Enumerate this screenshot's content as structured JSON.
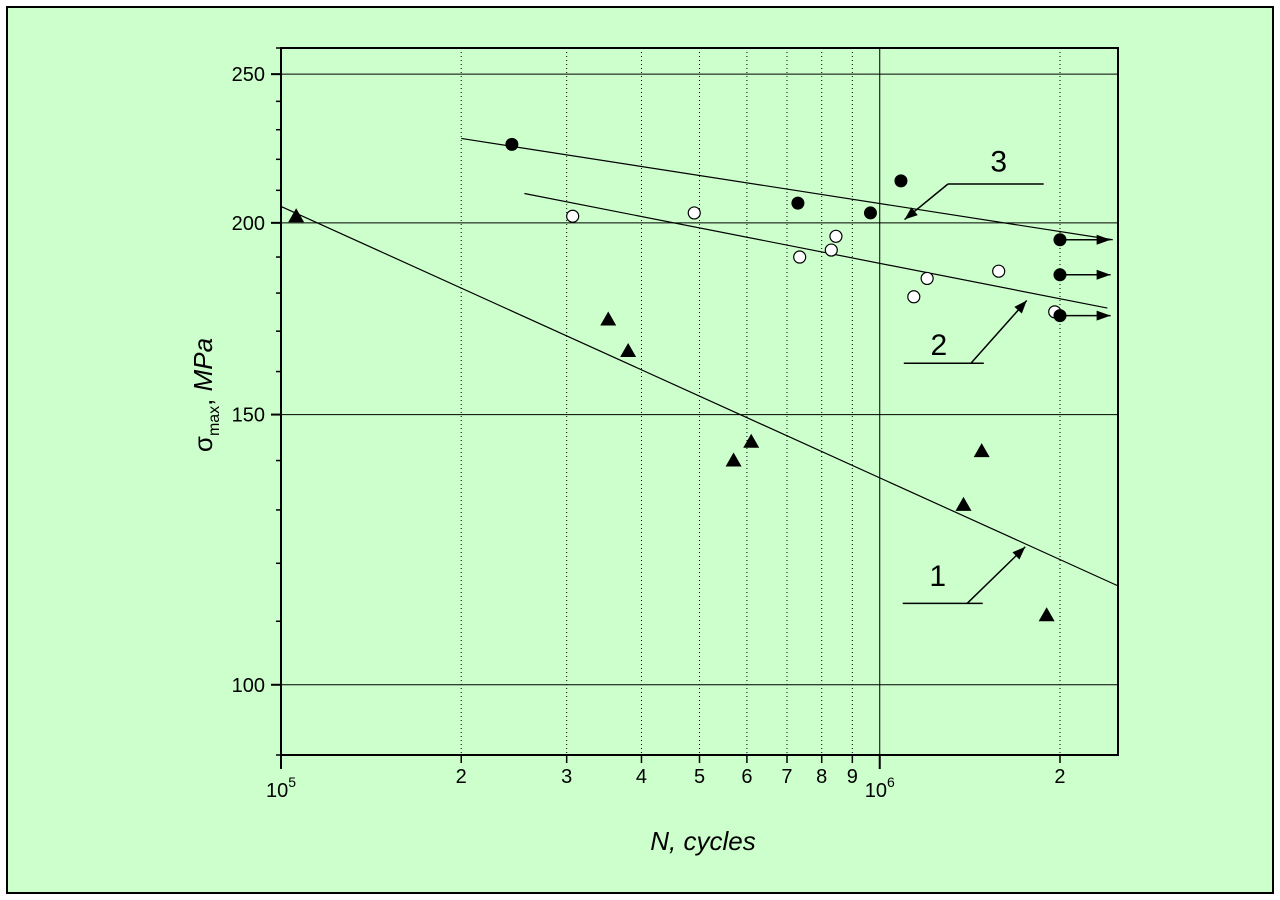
{
  "chart_data": {
    "type": "scatter",
    "title": "",
    "xlabel": "N, cycles",
    "ylabel": {
      "base": "σ",
      "sub": "max",
      "rest": ", ",
      "unit": "MPa"
    },
    "x_scale": "log",
    "y_scale": "log",
    "xlim": [
      100000,
      2500000
    ],
    "ylim": [
      90,
      260
    ],
    "x_major_ticks": [
      {
        "value": 100000,
        "base": "10",
        "exp": "5"
      },
      {
        "value": 1000000,
        "base": "10",
        "exp": "6"
      }
    ],
    "x_minor_ticks": [
      {
        "value": 200000,
        "label": "2"
      },
      {
        "value": 300000,
        "label": "3"
      },
      {
        "value": 400000,
        "label": "4"
      },
      {
        "value": 500000,
        "label": "5"
      },
      {
        "value": 600000,
        "label": "6"
      },
      {
        "value": 700000,
        "label": "7"
      },
      {
        "value": 800000,
        "label": "8"
      },
      {
        "value": 900000,
        "label": "9"
      },
      {
        "value": 2000000,
        "label": "2"
      }
    ],
    "y_ticks": [
      {
        "value": 100,
        "label": "100"
      },
      {
        "value": 150,
        "label": "150"
      },
      {
        "value": 200,
        "label": "200"
      },
      {
        "value": 250,
        "label": "250"
      }
    ],
    "grid": true,
    "colors": {
      "background": "#ccffcc",
      "frame": "#000000",
      "grid": "#000000"
    },
    "series": [
      {
        "label": "1",
        "marker": "triangle",
        "points": [
          [
            106000,
            202
          ],
          [
            352000,
            173
          ],
          [
            380000,
            165
          ],
          [
            570000,
            140
          ],
          [
            610000,
            144
          ],
          [
            1380000,
            131
          ],
          [
            1480000,
            142
          ],
          [
            1900000,
            111
          ]
        ],
        "fit": [
          [
            100000,
            205
          ],
          [
            2500000,
            116
          ]
        ],
        "label_text_at": [
          1250000,
          116
        ],
        "arrow": {
          "from": [
            1400000,
            113
          ],
          "to": [
            1750000,
            123
          ]
        }
      },
      {
        "label": "2",
        "marker": "open-circle",
        "points": [
          [
            307000,
            202
          ],
          [
            490000,
            203
          ],
          [
            735000,
            190
          ],
          [
            830000,
            192
          ],
          [
            845000,
            196
          ],
          [
            1140000,
            179
          ],
          [
            1200000,
            184
          ],
          [
            1580000,
            186
          ],
          [
            1960000,
            175
          ]
        ],
        "fit": [
          [
            255000,
            209
          ],
          [
            2400000,
            176
          ]
        ],
        "label_text_at": [
          1255000,
          164
        ],
        "arrow": {
          "from": [
            1420000,
            162
          ],
          "to": [
            1760000,
            178
          ]
        }
      },
      {
        "label": "3",
        "marker": "filled-circle",
        "points": [
          [
            243000,
            225
          ],
          [
            730000,
            206
          ],
          [
            965000,
            203
          ],
          [
            1085000,
            213
          ],
          [
            2000000,
            195
          ],
          [
            2000000,
            185
          ],
          [
            2000000,
            174
          ]
        ],
        "fit": [
          [
            200000,
            227
          ],
          [
            2450000,
            195
          ]
        ],
        "label_text_at": [
          1580000,
          216
        ],
        "arrow": {
          "from": [
            1300000,
            212
          ],
          "to": [
            1100000,
            201
          ]
        }
      }
    ],
    "runouts": [
      {
        "x": 2000000,
        "y": 195,
        "x_end": 2430000
      },
      {
        "x": 2000000,
        "y": 185,
        "x_end": 2430000
      },
      {
        "x": 2000000,
        "y": 174,
        "x_end": 2430000
      }
    ]
  }
}
